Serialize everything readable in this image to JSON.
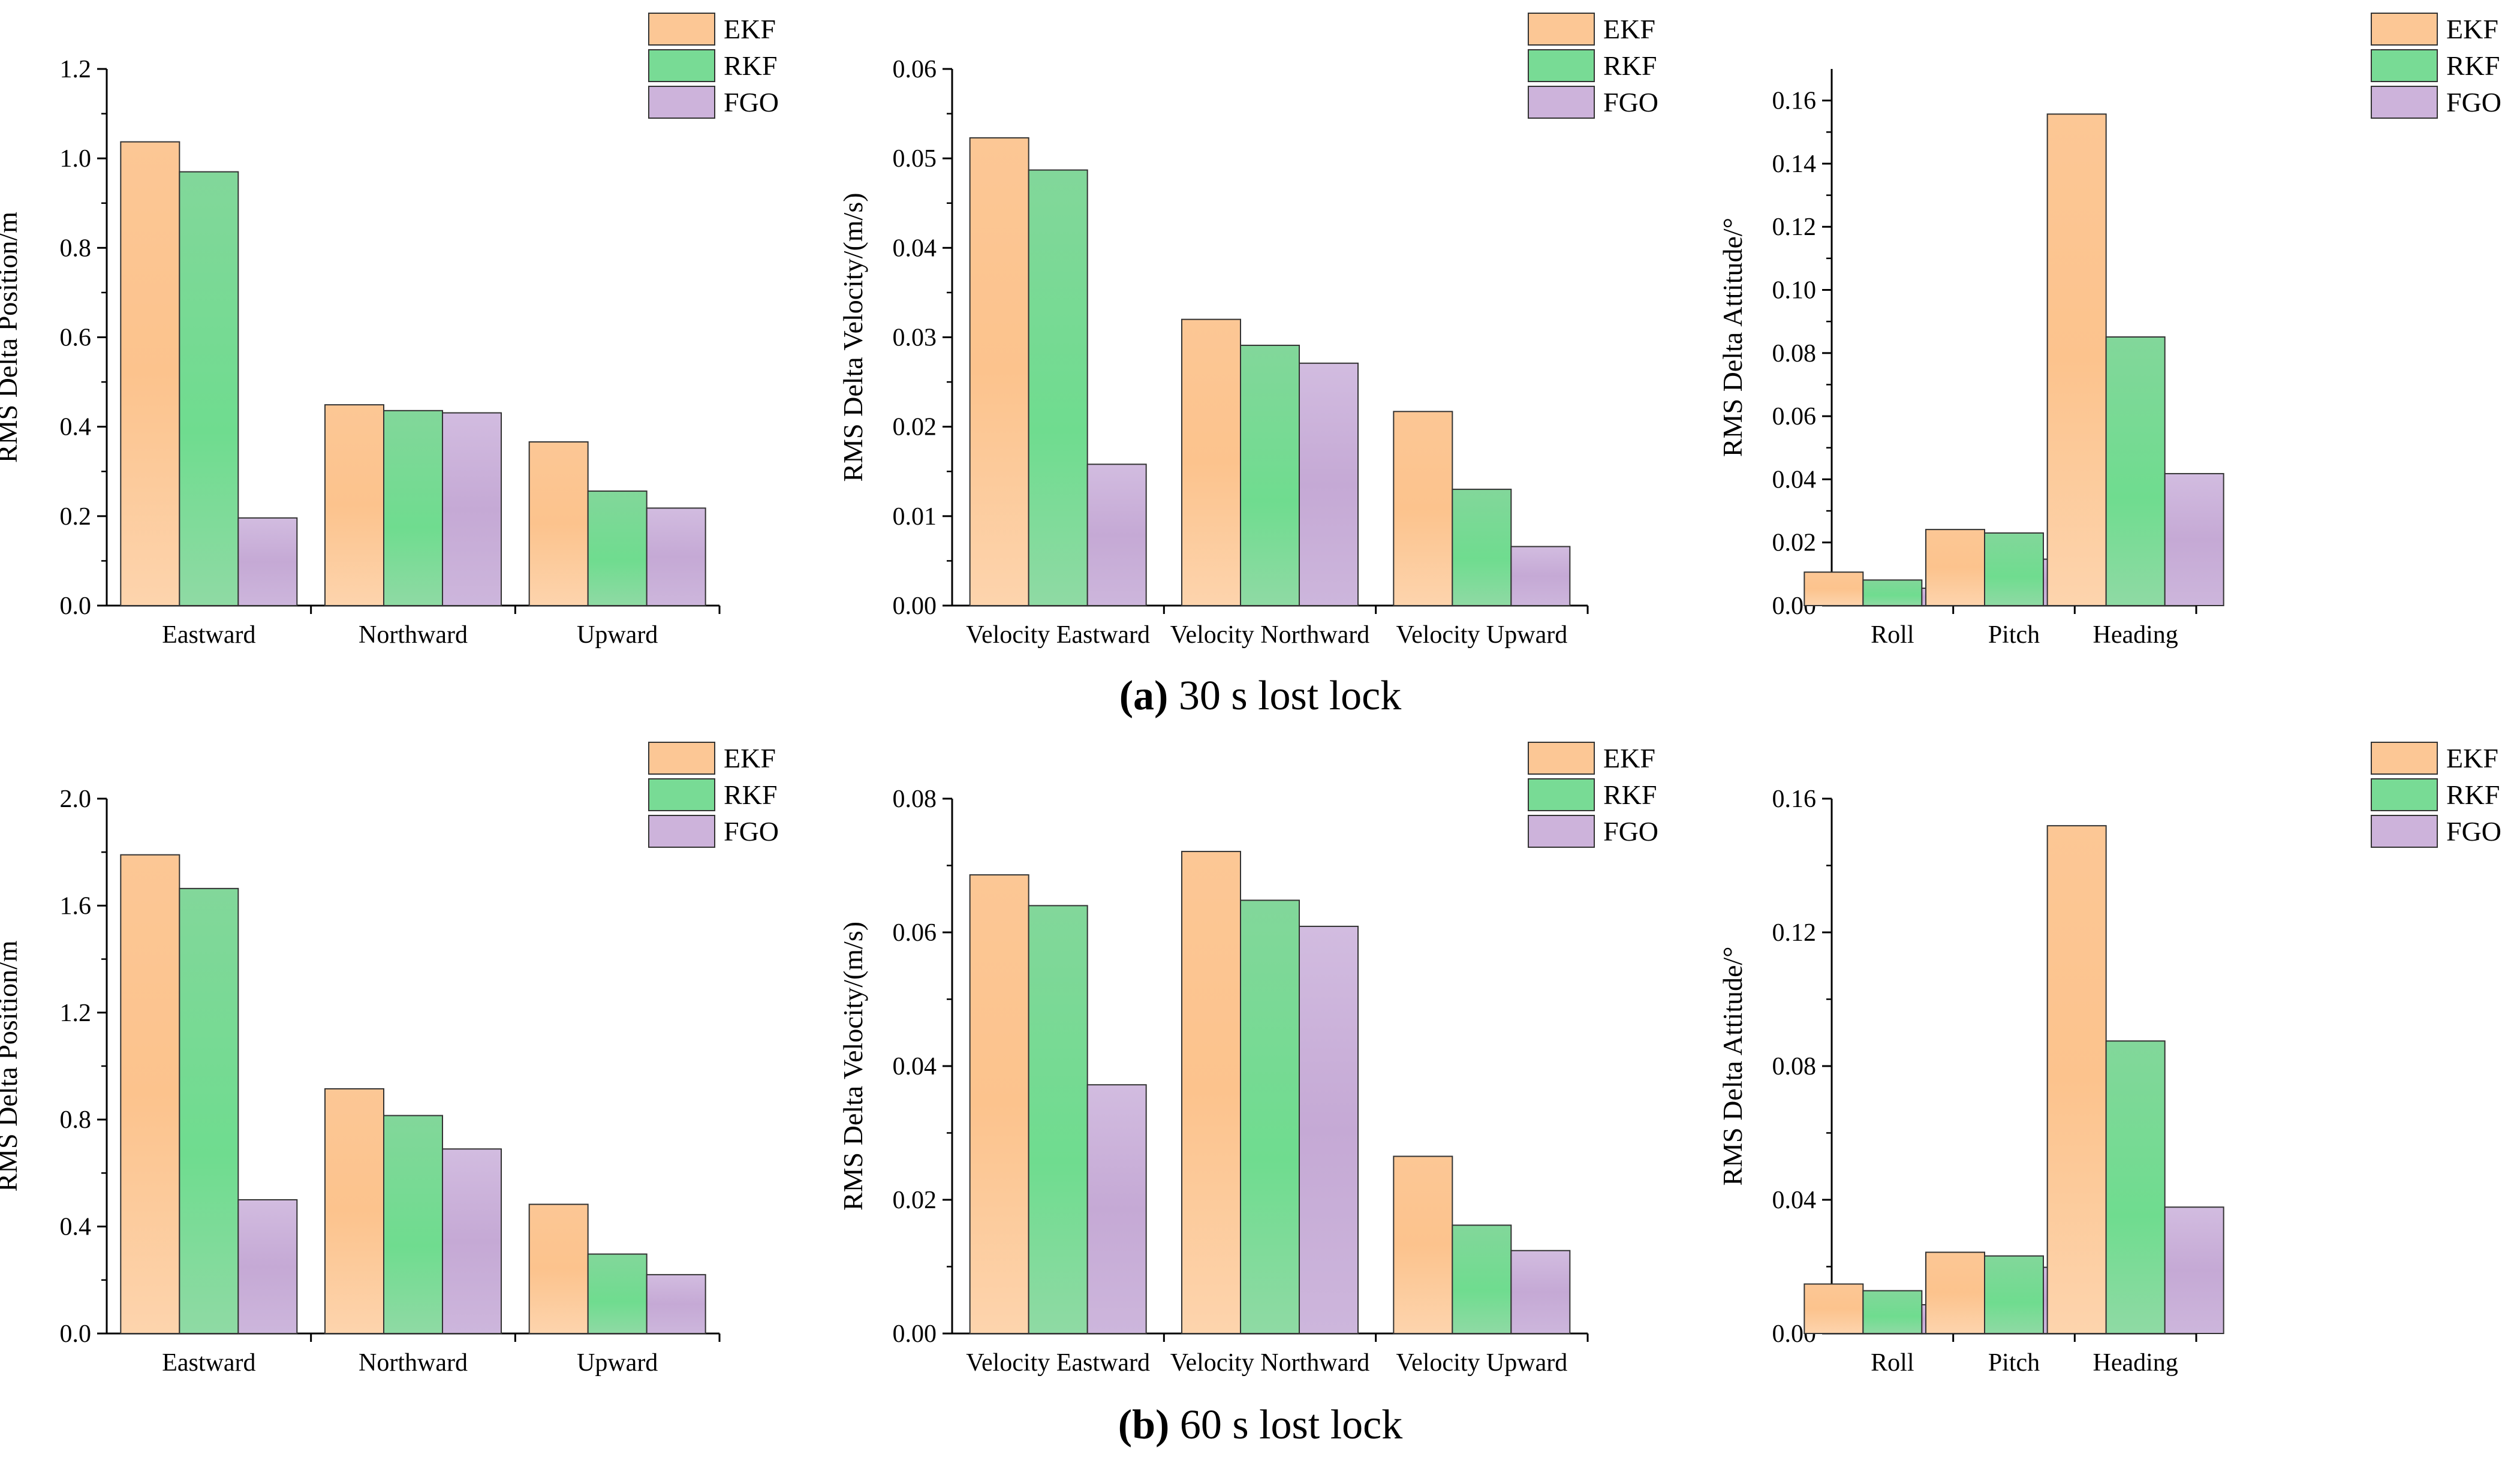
{
  "colors": {
    "EKF": "#fcc795",
    "RKF": "#78db95",
    "FGO": "#cdb3db",
    "EKF_light": "#fdd8b5",
    "RKF_light": "#9ee6b2",
    "FGO_light": "#dccbe6"
  },
  "captions": [
    {
      "letter": "(a)",
      "text": " 30 s lost lock"
    },
    {
      "letter": "(b)",
      "text": " 60 s lost lock"
    }
  ],
  "chart_data": [
    {
      "id": "a-position",
      "type": "bar",
      "row": 0,
      "col": 0,
      "title": "",
      "xlabel": "",
      "ylabel": "RMS Delta Position/m",
      "categories": [
        "Eastward",
        "Northward",
        "Upward"
      ],
      "ylim": [
        0,
        1.2
      ],
      "ticks": [
        "0.0",
        "0.2",
        "0.4",
        "0.6",
        "0.8",
        "1.0",
        "1.2"
      ],
      "minor": true,
      "grid": false,
      "legend": "top-right",
      "series": [
        {
          "name": "EKF",
          "values": [
            1.037,
            0.449,
            0.366
          ]
        },
        {
          "name": "RKF",
          "values": [
            0.97,
            0.436,
            0.256
          ]
        },
        {
          "name": "FGO",
          "values": [
            0.196,
            0.431,
            0.218
          ]
        }
      ]
    },
    {
      "id": "a-velocity",
      "type": "bar",
      "row": 0,
      "col": 1,
      "title": "",
      "xlabel": "",
      "ylabel": "RMS Delta Velocity/(m/s)",
      "categories": [
        "Velocity Eastward",
        "Velocity Northward",
        "Velocity Upward"
      ],
      "ylim": [
        0,
        0.06
      ],
      "ticks": [
        "0.00",
        "0.01",
        "0.02",
        "0.03",
        "0.04",
        "0.05",
        "0.06"
      ],
      "minor": true,
      "grid": false,
      "legend": "top-right",
      "series": [
        {
          "name": "EKF",
          "values": [
            0.0523,
            0.032,
            0.0217
          ]
        },
        {
          "name": "RKF",
          "values": [
            0.0487,
            0.0291,
            0.013
          ]
        },
        {
          "name": "FGO",
          "values": [
            0.0158,
            0.0271,
            0.0066
          ]
        }
      ]
    },
    {
      "id": "a-attitude",
      "type": "bar",
      "row": 0,
      "col": 2,
      "title": "",
      "xlabel": "",
      "ylabel": "RMS Delta Attitude/°",
      "categories": [
        "Roll",
        "Pitch",
        "Heading"
      ],
      "ylim": [
        0,
        0.17
      ],
      "ticks": [
        "0.00",
        "0.02",
        "0.04",
        "0.06",
        "0.08",
        "0.10",
        "0.12",
        "0.14",
        "0.16"
      ],
      "minor": true,
      "grid": false,
      "legend": "top-right",
      "series": [
        {
          "name": "EKF",
          "values": [
            0.0106,
            0.0241,
            0.1557
          ]
        },
        {
          "name": "RKF",
          "values": [
            0.0081,
            0.023,
            0.0851
          ]
        },
        {
          "name": "FGO",
          "values": [
            0.0055,
            0.0147,
            0.0418
          ]
        }
      ]
    },
    {
      "id": "b-position",
      "type": "bar",
      "row": 1,
      "col": 0,
      "title": "",
      "xlabel": "",
      "ylabel": "RMS Delta Position/m",
      "categories": [
        "Eastward",
        "Northward",
        "Upward"
      ],
      "ylim": [
        0,
        2.0
      ],
      "ticks": [
        "0.0",
        "0.4",
        "0.8",
        "1.2",
        "1.6",
        "2.0"
      ],
      "minor": true,
      "grid": false,
      "legend": "top-right",
      "series": [
        {
          "name": "EKF",
          "values": [
            1.79,
            0.915,
            0.483
          ]
        },
        {
          "name": "RKF",
          "values": [
            1.664,
            0.815,
            0.297
          ]
        },
        {
          "name": "FGO",
          "values": [
            0.5,
            0.69,
            0.22
          ]
        }
      ]
    },
    {
      "id": "b-velocity",
      "type": "bar",
      "row": 1,
      "col": 1,
      "title": "",
      "xlabel": "",
      "ylabel": "RMS Delta Velocity/(m/s)",
      "categories": [
        "Velocity Eastward",
        "Velocity Northward",
        "Velocity Upward"
      ],
      "ylim": [
        0,
        0.08
      ],
      "ticks": [
        "0.00",
        "0.02",
        "0.04",
        "0.06",
        "0.08"
      ],
      "minor": true,
      "grid": false,
      "legend": "top-right",
      "series": [
        {
          "name": "EKF",
          "values": [
            0.0686,
            0.0721,
            0.0265
          ]
        },
        {
          "name": "RKF",
          "values": [
            0.064,
            0.0648,
            0.0162
          ]
        },
        {
          "name": "FGO",
          "values": [
            0.0372,
            0.0609,
            0.0124
          ]
        }
      ]
    },
    {
      "id": "b-attitude",
      "type": "bar",
      "row": 1,
      "col": 2,
      "title": "",
      "xlabel": "",
      "ylabel": "RMS Delta Attitude/°",
      "categories": [
        "Roll",
        "Pitch",
        "Heading"
      ],
      "ylim": [
        0,
        0.16
      ],
      "ticks": [
        "0.00",
        "0.04",
        "0.08",
        "0.12",
        "0.16"
      ],
      "minor": true,
      "grid": false,
      "legend": "top-right",
      "series": [
        {
          "name": "EKF",
          "values": [
            0.0148,
            0.0243,
            0.1519
          ]
        },
        {
          "name": "RKF",
          "values": [
            0.0128,
            0.0232,
            0.0875
          ]
        },
        {
          "name": "FGO",
          "values": [
            0.0086,
            0.0198,
            0.0378
          ]
        }
      ]
    }
  ]
}
